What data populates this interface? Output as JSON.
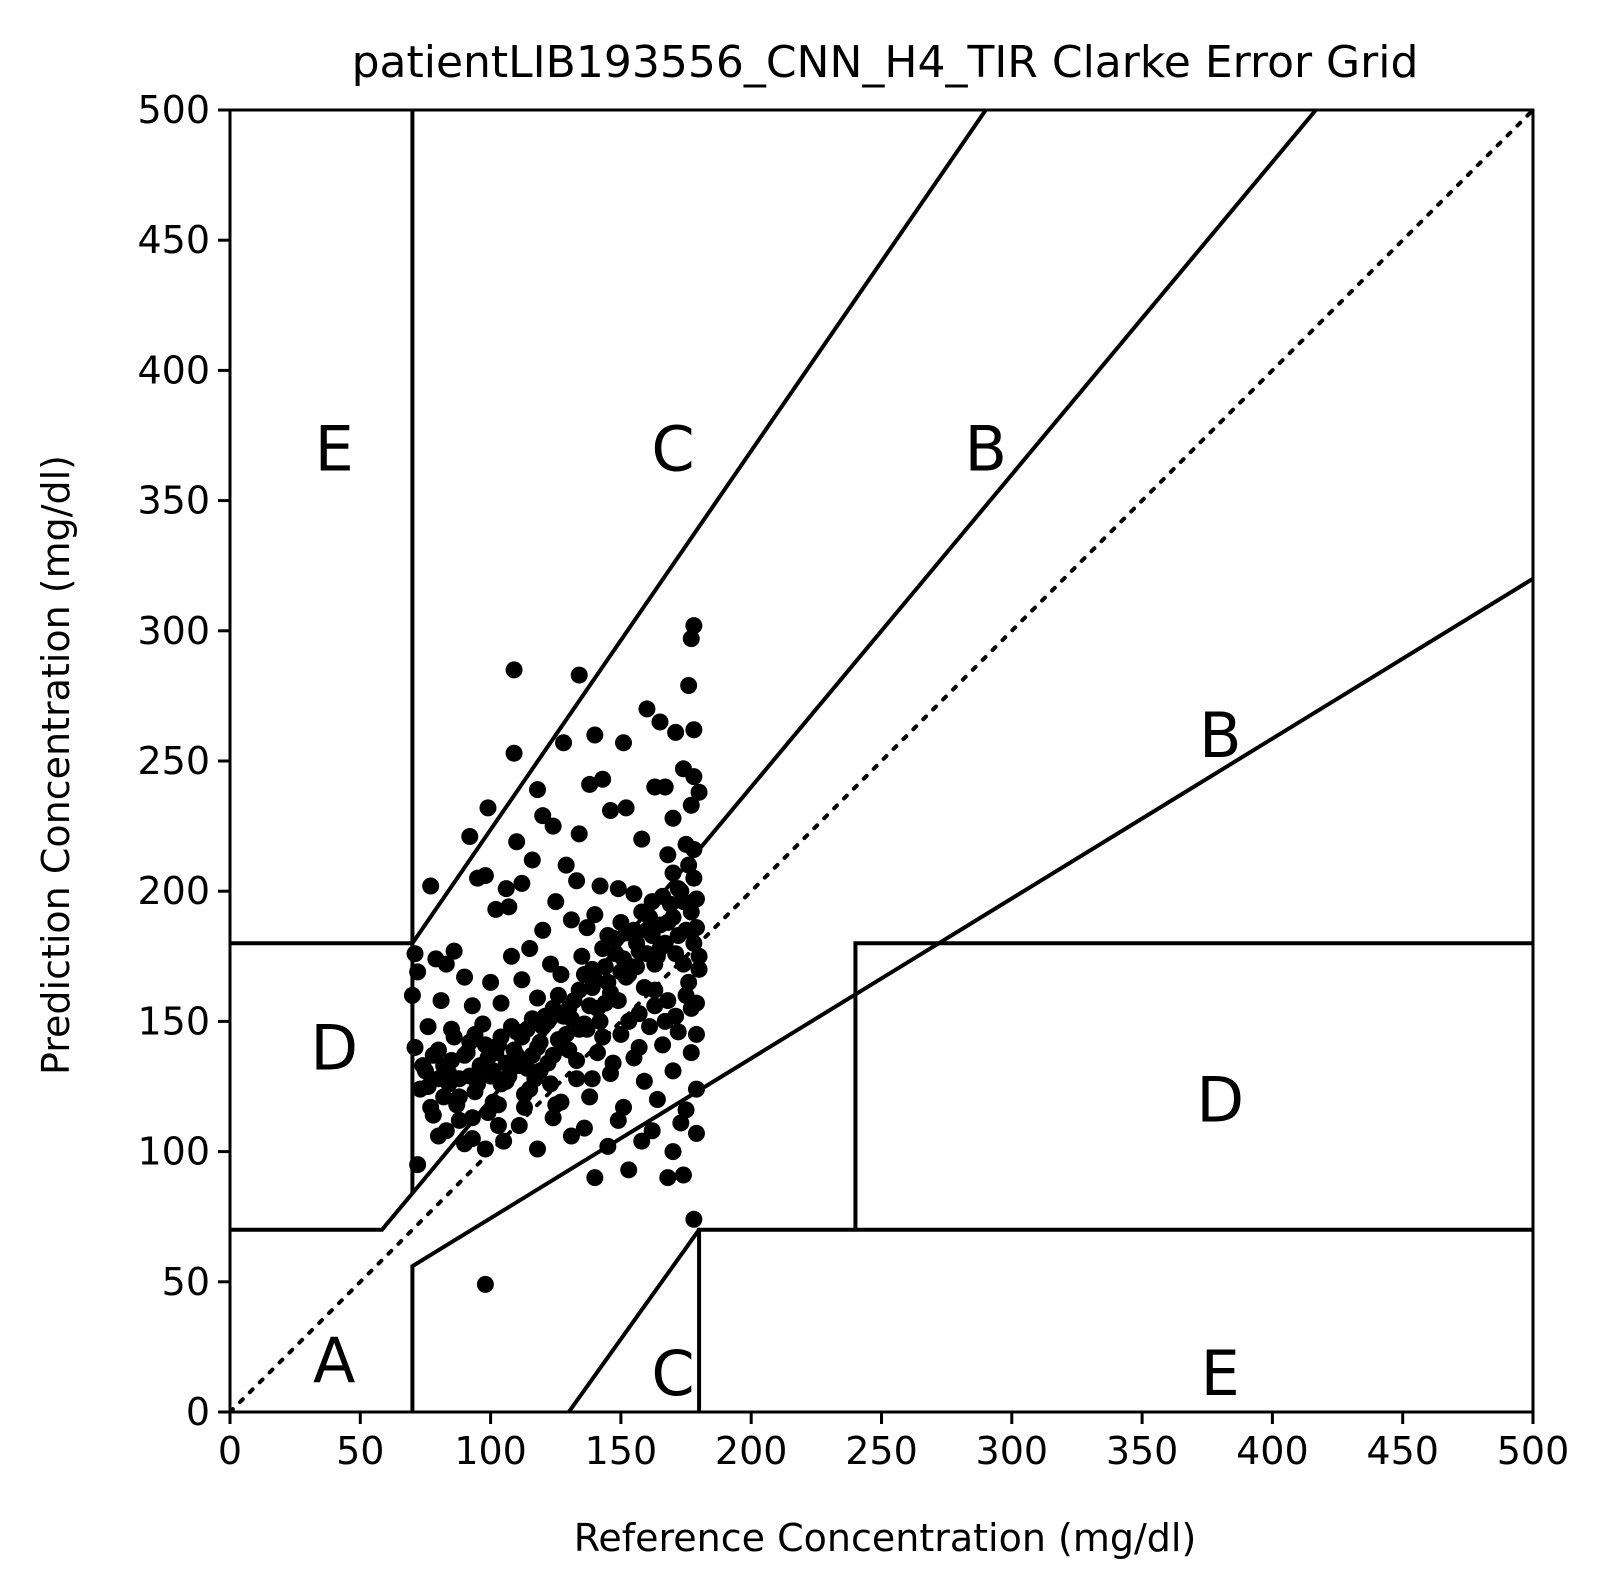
{
  "chart_data": {
    "type": "scatter",
    "title": "patientLIB193556_CNN_H4_TIR Clarke Error Grid",
    "xlabel": "Reference Concentration (mg/dl)",
    "ylabel": "Prediction Concentration (mg/dl)",
    "xlim": [
      0,
      500
    ],
    "ylim": [
      0,
      500
    ],
    "xticks": [
      "0",
      "50",
      "100",
      "150",
      "200",
      "250",
      "300",
      "350",
      "400",
      "450",
      "500"
    ],
    "yticks": [
      "0",
      "50",
      "100",
      "150",
      "200",
      "250",
      "300",
      "350",
      "400",
      "450",
      "500"
    ],
    "grid": false,
    "identity_line": "dotted",
    "zone_lines": [
      [
        [
          0,
          70
        ],
        [
          58.33,
          70
        ]
      ],
      [
        [
          70,
          84
        ],
        [
          70,
          180
        ],
        [
          290,
          500
        ]
      ],
      [
        [
          70,
          0
        ],
        [
          70,
          56
        ],
        [
          500,
          320
        ]
      ],
      [
        [
          70,
          180
        ],
        [
          70,
          500
        ]
      ],
      [
        [
          0,
          180
        ],
        [
          70,
          180
        ]
      ],
      [
        [
          180,
          0
        ],
        [
          180,
          70
        ],
        [
          500,
          70
        ]
      ],
      [
        [
          240,
          70
        ],
        [
          240,
          180
        ],
        [
          500,
          180
        ]
      ],
      [
        [
          130,
          0
        ],
        [
          180,
          70
        ]
      ],
      [
        [
          58.33,
          70
        ],
        [
          70,
          84
        ],
        [
          70,
          84
        ],
        [
          70,
          84
        ]
      ],
      [
        [
          70,
          84
        ],
        [
          416.67,
          500
        ]
      ]
    ],
    "zone_labels": [
      {
        "text": "A",
        "x": 40,
        "y": 20
      },
      {
        "text": "B",
        "x": 290,
        "y": 370
      },
      {
        "text": "B",
        "x": 380,
        "y": 260
      },
      {
        "text": "C",
        "x": 170,
        "y": 370
      },
      {
        "text": "C",
        "x": 170,
        "y": 15
      },
      {
        "text": "D",
        "x": 40,
        "y": 140
      },
      {
        "text": "D",
        "x": 380,
        "y": 120
      },
      {
        "text": "E",
        "x": 40,
        "y": 370
      },
      {
        "text": "E",
        "x": 380,
        "y": 15
      }
    ],
    "series": [
      {
        "marker": "circle",
        "color": "#000000",
        "points": [
          [
            109,
            285
          ],
          [
            134,
            283
          ],
          [
            178,
            302
          ],
          [
            177,
            297
          ],
          [
            176,
            279
          ],
          [
            160,
            270
          ],
          [
            165,
            265
          ],
          [
            178,
            262
          ],
          [
            171,
            261
          ],
          [
            140,
            260
          ],
          [
            109,
            253
          ],
          [
            128,
            257
          ],
          [
            151,
            257
          ],
          [
            174,
            247
          ],
          [
            178,
            244
          ],
          [
            180,
            238
          ],
          [
            118,
            239
          ],
          [
            138,
            241
          ],
          [
            143,
            243
          ],
          [
            163,
            240
          ],
          [
            167,
            240
          ],
          [
            152,
            232
          ],
          [
            99,
            232
          ],
          [
            120,
            229
          ],
          [
            124,
            225
          ],
          [
            146,
            231
          ],
          [
            170,
            228
          ],
          [
            177,
            233
          ],
          [
            92,
            221
          ],
          [
            110,
            219
          ],
          [
            134,
            222
          ],
          [
            158,
            220
          ],
          [
            168,
            214
          ],
          [
            175,
            218
          ],
          [
            178,
            216
          ],
          [
            116,
            212
          ],
          [
            129,
            210
          ],
          [
            98,
            206
          ],
          [
            106,
            201
          ],
          [
            112,
            203
          ],
          [
            77,
            202
          ],
          [
            95,
            205
          ],
          [
            133,
            204
          ],
          [
            142,
            202
          ],
          [
            149,
            201
          ],
          [
            125,
            196
          ],
          [
            102,
            193
          ],
          [
            107,
            194
          ],
          [
            131,
            189
          ],
          [
            140,
            191
          ],
          [
            155,
            199
          ],
          [
            162,
            196
          ],
          [
            172,
            201
          ],
          [
            179,
            197
          ],
          [
            120,
            185
          ],
          [
            137,
            186
          ],
          [
            145,
            183
          ],
          [
            150,
            188
          ],
          [
            160,
            185
          ],
          [
            170,
            190
          ],
          [
            178,
            180
          ],
          [
            71,
            176
          ],
          [
            79,
            174
          ],
          [
            86,
            177
          ],
          [
            108,
            175
          ],
          [
            115,
            178
          ],
          [
            123,
            172
          ],
          [
            135,
            175
          ],
          [
            148,
            176
          ],
          [
            156,
            171
          ],
          [
            165,
            178
          ],
          [
            174,
            172
          ],
          [
            180,
            175
          ],
          [
            72,
            169
          ],
          [
            83,
            172
          ],
          [
            90,
            167
          ],
          [
            100,
            165
          ],
          [
            112,
            166
          ],
          [
            127,
            168
          ],
          [
            139,
            163
          ],
          [
            152,
            167
          ],
          [
            163,
            162
          ],
          [
            176,
            165
          ],
          [
            70,
            160
          ],
          [
            81,
            158
          ],
          [
            93,
            156
          ],
          [
            104,
            157
          ],
          [
            118,
            159
          ],
          [
            130,
            155
          ],
          [
            144,
            157
          ],
          [
            157,
            153
          ],
          [
            168,
            158
          ],
          [
            179,
            157
          ],
          [
            76,
            148
          ],
          [
            85,
            147
          ],
          [
            97,
            149
          ],
          [
            110,
            146
          ],
          [
            122,
            150
          ],
          [
            137,
            147
          ],
          [
            150,
            145
          ],
          [
            161,
            148
          ],
          [
            172,
            146
          ],
          [
            71,
            140
          ],
          [
            80,
            139
          ],
          [
            91,
            138
          ],
          [
            103,
            141
          ],
          [
            116,
            137
          ],
          [
            128,
            140
          ],
          [
            141,
            138
          ],
          [
            155,
            136
          ],
          [
            166,
            141
          ],
          [
            177,
            138
          ],
          [
            74,
            133
          ],
          [
            84,
            130
          ],
          [
            96,
            132
          ],
          [
            107,
            129
          ],
          [
            119,
            131
          ],
          [
            133,
            128
          ],
          [
            146,
            130
          ],
          [
            159,
            127
          ],
          [
            170,
            131
          ],
          [
            179,
            124
          ],
          [
            73,
            124
          ],
          [
            82,
            121
          ],
          [
            94,
            123
          ],
          [
            101,
            119
          ],
          [
            113,
            122
          ],
          [
            125,
            118
          ],
          [
            138,
            121
          ],
          [
            151,
            117
          ],
          [
            164,
            120
          ],
          [
            175,
            116
          ],
          [
            78,
            114
          ],
          [
            88,
            112
          ],
          [
            99,
            115
          ],
          [
            111,
            110
          ],
          [
            124,
            113
          ],
          [
            136,
            109
          ],
          [
            149,
            112
          ],
          [
            162,
            108
          ],
          [
            173,
            111
          ],
          [
            80,
            106
          ],
          [
            90,
            103
          ],
          [
            105,
            104
          ],
          [
            118,
            101
          ],
          [
            131,
            106
          ],
          [
            145,
            102
          ],
          [
            158,
            104
          ],
          [
            170,
            100
          ],
          [
            179,
            107
          ],
          [
            72,
            95
          ],
          [
            98,
            101
          ],
          [
            140,
            90
          ],
          [
            153,
            93
          ],
          [
            168,
            90
          ],
          [
            174,
            91
          ],
          [
            178,
            74
          ],
          [
            98,
            49
          ],
          [
            85,
            135
          ],
          [
            88,
            128
          ],
          [
            92,
            142
          ],
          [
            95,
            126
          ],
          [
            99,
            136
          ],
          [
            101,
            131
          ],
          [
            104,
            144
          ],
          [
            106,
            127
          ],
          [
            109,
            139
          ],
          [
            111,
            133
          ],
          [
            114,
            147
          ],
          [
            117,
            128
          ],
          [
            119,
            142
          ],
          [
            121,
            152
          ],
          [
            124,
            137
          ],
          [
            126,
            160
          ],
          [
            129,
            145
          ],
          [
            131,
            151
          ],
          [
            134,
            162
          ],
          [
            136,
            149
          ],
          [
            139,
            170
          ],
          [
            141,
            155
          ],
          [
            143,
            178
          ],
          [
            145,
            165
          ],
          [
            147,
            182
          ],
          [
            149,
            158
          ],
          [
            151,
            174
          ],
          [
            153,
            168
          ],
          [
            155,
            185
          ],
          [
            157,
            177
          ],
          [
            159,
            163
          ],
          [
            161,
            190
          ],
          [
            163,
            172
          ],
          [
            165,
            187
          ],
          [
            167,
            180
          ],
          [
            169,
            195
          ],
          [
            171,
            176
          ],
          [
            173,
            200
          ],
          [
            175,
            185
          ],
          [
            177,
            192
          ],
          [
            179,
            186
          ],
          [
            180,
            170
          ],
          [
            178,
            205
          ],
          [
            176,
            210
          ],
          [
            174,
            196
          ],
          [
            172,
            183
          ],
          [
            170,
            207
          ],
          [
            168,
            188
          ],
          [
            166,
            198
          ],
          [
            164,
            175
          ],
          [
            162,
            183
          ],
          [
            160,
            176
          ],
          [
            158,
            192
          ],
          [
            156,
            180
          ],
          [
            154,
            171
          ],
          [
            152,
            184
          ],
          [
            150,
            169
          ],
          [
            148,
            176
          ],
          [
            146,
            161
          ],
          [
            144,
            171
          ],
          [
            142,
            150
          ],
          [
            140,
            166
          ],
          [
            138,
            156
          ],
          [
            136,
            168
          ],
          [
            134,
            147
          ],
          [
            132,
            158
          ],
          [
            130,
            139
          ],
          [
            128,
            152
          ],
          [
            126,
            143
          ],
          [
            124,
            155
          ],
          [
            122,
            134
          ],
          [
            120,
            148
          ],
          [
            118,
            140
          ],
          [
            116,
            151
          ],
          [
            114,
            132
          ],
          [
            112,
            144
          ],
          [
            110,
            137
          ],
          [
            108,
            148
          ],
          [
            106,
            134
          ],
          [
            104,
            126
          ],
          [
            102,
            138
          ],
          [
            100,
            129
          ],
          [
            98,
            141
          ],
          [
            96,
            133
          ],
          [
            94,
            145
          ],
          [
            92,
            129
          ],
          [
            90,
            137
          ],
          [
            88,
            121
          ],
          [
            86,
            144
          ],
          [
            84,
            126
          ],
          [
            82,
            133
          ],
          [
            80,
            128
          ],
          [
            78,
            137
          ],
          [
            76,
            125
          ],
          [
            75,
            131
          ],
          [
            87,
            118
          ],
          [
            93,
            113
          ],
          [
            103,
            118
          ],
          [
            115,
            124
          ],
          [
            127,
            119
          ],
          [
            139,
            128
          ],
          [
            147,
            134
          ],
          [
            157,
            140
          ],
          [
            167,
            150
          ],
          [
            177,
            155
          ],
          [
            179,
            145
          ],
          [
            175,
            160
          ],
          [
            171,
            152
          ],
          [
            163,
            156
          ],
          [
            153,
            150
          ],
          [
            143,
            144
          ],
          [
            133,
            135
          ],
          [
            123,
            126
          ],
          [
            113,
            117
          ],
          [
            103,
            110
          ],
          [
            93,
            105
          ],
          [
            83,
            108
          ],
          [
            77,
            117
          ]
        ]
      }
    ]
  }
}
